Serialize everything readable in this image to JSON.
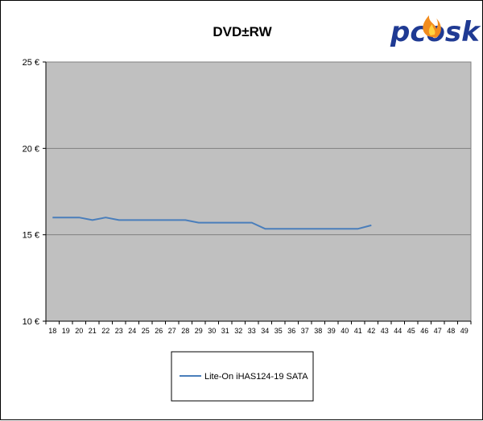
{
  "chart_data": {
    "type": "line",
    "title": "DVD±RW",
    "xlabel": "",
    "ylabel": "",
    "x": [
      18,
      19,
      20,
      21,
      22,
      23,
      24,
      25,
      26,
      27,
      28,
      29,
      30,
      31,
      32,
      33,
      34,
      35,
      36,
      37,
      38,
      39,
      40,
      41,
      42,
      43,
      44,
      45,
      46,
      47,
      48,
      49
    ],
    "ylim": [
      10,
      25
    ],
    "y_ticks": [
      10,
      15,
      20,
      25
    ],
    "y_tick_suffix": " €",
    "grid": true,
    "legend_position": "bottom",
    "series": [
      {
        "name": "Lite-On iHAS124-19 SATA",
        "color": "#4a7ebb",
        "values": [
          16.0,
          16.0,
          16.0,
          15.85,
          16.0,
          15.85,
          15.85,
          15.85,
          15.85,
          15.85,
          15.85,
          15.7,
          15.7,
          15.7,
          15.7,
          15.7,
          15.35,
          15.35,
          15.35,
          15.35,
          15.35,
          15.35,
          15.35,
          15.35,
          15.55,
          null,
          null,
          null,
          null,
          null,
          null,
          null
        ]
      }
    ]
  },
  "colors": {
    "plot_background": "#c0c0c0",
    "gridline": "#808080",
    "logo_text": "#1f3a93",
    "logo_flame": "#f28c1e"
  },
  "logo": {
    "text": "pcosk",
    "icon": "flame-icon"
  }
}
